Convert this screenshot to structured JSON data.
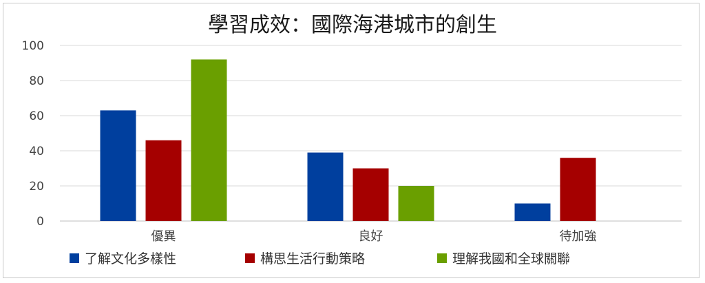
{
  "chart_data": {
    "type": "bar",
    "title": "學習成效：國際海港城市的創生",
    "xlabel": "",
    "ylabel": "",
    "categories": [
      "優異",
      "良好",
      "待加強"
    ],
    "ylim": [
      0,
      100
    ],
    "yticks": [
      0,
      20,
      40,
      60,
      80,
      100
    ],
    "grid": true,
    "legend_position": "bottom",
    "series": [
      {
        "name": "了解文化多樣性",
        "color": "#003f9e",
        "values": [
          63,
          39,
          10
        ]
      },
      {
        "name": "構思生活行動策略",
        "color": "#a50000",
        "values": [
          46,
          30,
          36
        ]
      },
      {
        "name": "理解我國和全球關聯",
        "color": "#6a9f00",
        "values": [
          92,
          20,
          0
        ]
      }
    ]
  }
}
